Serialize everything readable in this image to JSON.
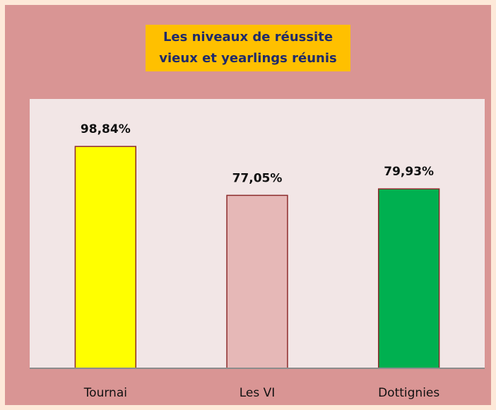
{
  "chart_data": {
    "type": "bar",
    "title": [
      "Les niveaux de réussite",
      "vieux et yearlings réunis"
    ],
    "categories": [
      "Tournai",
      "Les VI",
      "Dottignies"
    ],
    "values": [
      98.84,
      77.05,
      79.93
    ],
    "value_labels": [
      "98,84%",
      "77,05%",
      "79,93%"
    ],
    "colors": [
      "#ffff00",
      "#e6b8b7",
      "#00b050"
    ],
    "ylim": [
      0,
      120
    ]
  }
}
